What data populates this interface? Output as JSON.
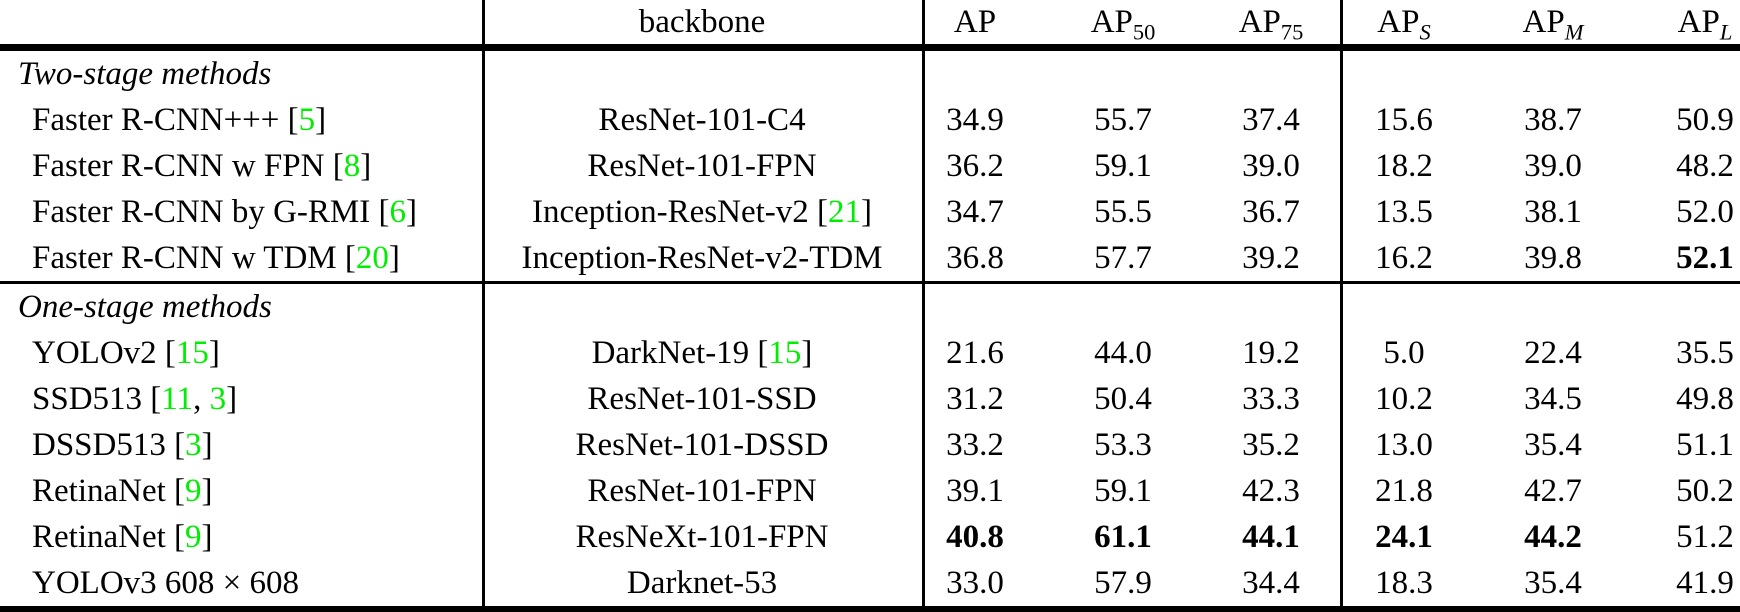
{
  "table": {
    "header": {
      "backbone": "backbone",
      "metrics": [
        {
          "base": "AP",
          "sub": "",
          "italic_sub": false
        },
        {
          "base": "AP",
          "sub": "50",
          "italic_sub": false
        },
        {
          "base": "AP",
          "sub": "75",
          "italic_sub": false
        },
        {
          "base": "AP",
          "sub": "S",
          "italic_sub": true
        },
        {
          "base": "AP",
          "sub": "M",
          "italic_sub": true
        },
        {
          "base": "AP",
          "sub": "L",
          "italic_sub": true
        }
      ]
    },
    "sections": [
      {
        "label": "Two-stage methods",
        "rows": [
          {
            "method": [
              {
                "t": "Faster R-CNN+++ ["
              },
              {
                "t": "5",
                "c": true
              },
              {
                "t": "]"
              }
            ],
            "backbone": [
              {
                "t": "ResNet-101-C4"
              }
            ],
            "values": [
              "34.9",
              "55.7",
              "37.4",
              "15.6",
              "38.7",
              "50.9"
            ],
            "bold": []
          },
          {
            "method": [
              {
                "t": "Faster R-CNN w FPN ["
              },
              {
                "t": "8",
                "c": true
              },
              {
                "t": "]"
              }
            ],
            "backbone": [
              {
                "t": "ResNet-101-FPN"
              }
            ],
            "values": [
              "36.2",
              "59.1",
              "39.0",
              "18.2",
              "39.0",
              "48.2"
            ],
            "bold": []
          },
          {
            "method": [
              {
                "t": "Faster R-CNN by G-RMI ["
              },
              {
                "t": "6",
                "c": true
              },
              {
                "t": "]"
              }
            ],
            "backbone": [
              {
                "t": "Inception-ResNet-v2 ["
              },
              {
                "t": "21",
                "c": true
              },
              {
                "t": "]"
              }
            ],
            "values": [
              "34.7",
              "55.5",
              "36.7",
              "13.5",
              "38.1",
              "52.0"
            ],
            "bold": []
          },
          {
            "method": [
              {
                "t": "Faster R-CNN w TDM ["
              },
              {
                "t": "20",
                "c": true
              },
              {
                "t": "]"
              }
            ],
            "backbone": [
              {
                "t": "Inception-ResNet-v2-TDM"
              }
            ],
            "values": [
              "36.8",
              "57.7",
              "39.2",
              "16.2",
              "39.8",
              "52.1"
            ],
            "bold": [
              5
            ]
          }
        ]
      },
      {
        "label": "One-stage methods",
        "rows": [
          {
            "method": [
              {
                "t": "YOLOv2 ["
              },
              {
                "t": "15",
                "c": true
              },
              {
                "t": "]"
              }
            ],
            "backbone": [
              {
                "t": "DarkNet-19 ["
              },
              {
                "t": "15",
                "c": true
              },
              {
                "t": "]"
              }
            ],
            "values": [
              "21.6",
              "44.0",
              "19.2",
              "5.0",
              "22.4",
              "35.5"
            ],
            "bold": []
          },
          {
            "method": [
              {
                "t": "SSD513 ["
              },
              {
                "t": "11",
                "c": true
              },
              {
                "t": ", "
              },
              {
                "t": "3",
                "c": true
              },
              {
                "t": "]"
              }
            ],
            "backbone": [
              {
                "t": "ResNet-101-SSD"
              }
            ],
            "values": [
              "31.2",
              "50.4",
              "33.3",
              "10.2",
              "34.5",
              "49.8"
            ],
            "bold": []
          },
          {
            "method": [
              {
                "t": "DSSD513 ["
              },
              {
                "t": "3",
                "c": true
              },
              {
                "t": "]"
              }
            ],
            "backbone": [
              {
                "t": "ResNet-101-DSSD"
              }
            ],
            "values": [
              "33.2",
              "53.3",
              "35.2",
              "13.0",
              "35.4",
              "51.1"
            ],
            "bold": []
          },
          {
            "method": [
              {
                "t": "RetinaNet ["
              },
              {
                "t": "9",
                "c": true
              },
              {
                "t": "]"
              }
            ],
            "backbone": [
              {
                "t": "ResNet-101-FPN"
              }
            ],
            "values": [
              "39.1",
              "59.1",
              "42.3",
              "21.8",
              "42.7",
              "50.2"
            ],
            "bold": []
          },
          {
            "method": [
              {
                "t": "RetinaNet ["
              },
              {
                "t": "9",
                "c": true
              },
              {
                "t": "]"
              }
            ],
            "backbone": [
              {
                "t": "ResNeXt-101-FPN"
              }
            ],
            "values": [
              "40.8",
              "61.1",
              "44.1",
              "24.1",
              "44.2",
              "51.2"
            ],
            "bold": [
              0,
              1,
              2,
              3,
              4
            ]
          },
          {
            "method": [
              {
                "t": "YOLOv3 608 × 608"
              }
            ],
            "backbone": [
              {
                "t": "Darknet-53"
              }
            ],
            "values": [
              "33.0",
              "57.9",
              "34.4",
              "18.3",
              "35.4",
              "41.9"
            ],
            "bold": []
          }
        ]
      }
    ],
    "colors": {
      "citation_green": "#00ee00",
      "text": "#000000",
      "background": "#ffffff"
    }
  }
}
